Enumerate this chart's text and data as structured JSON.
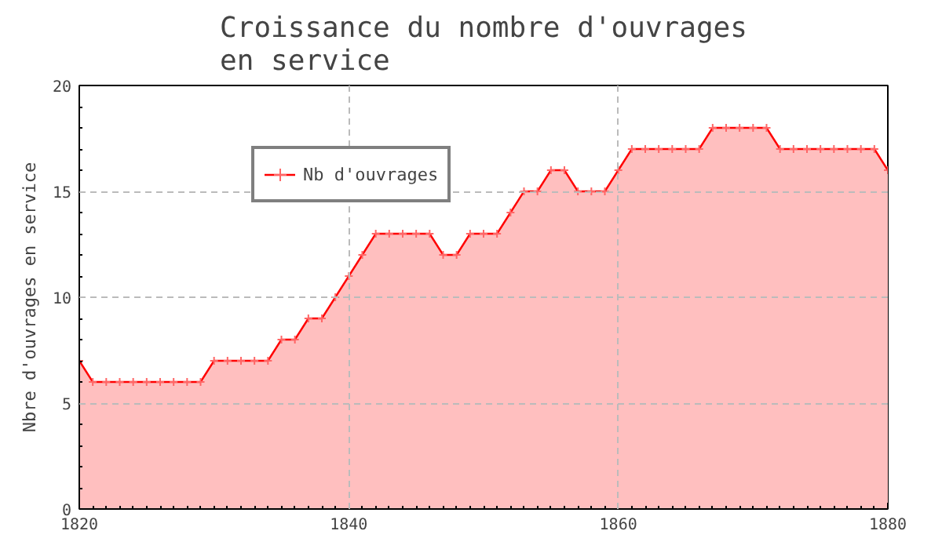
{
  "chart_data": {
    "type": "area",
    "title": "Croissance du nombre d'ouvrages\nen service",
    "ylabel": "Nbre d'ouvrages en service",
    "x": [
      1820,
      1821,
      1822,
      1823,
      1824,
      1825,
      1826,
      1827,
      1828,
      1829,
      1830,
      1831,
      1832,
      1833,
      1834,
      1835,
      1836,
      1837,
      1838,
      1839,
      1840,
      1841,
      1842,
      1843,
      1844,
      1845,
      1846,
      1847,
      1848,
      1849,
      1850,
      1851,
      1852,
      1853,
      1854,
      1855,
      1856,
      1857,
      1858,
      1859,
      1860,
      1861,
      1862,
      1863,
      1864,
      1865,
      1866,
      1867,
      1868,
      1869,
      1870,
      1871,
      1872,
      1873,
      1874,
      1875,
      1876,
      1877,
      1878,
      1879,
      1880
    ],
    "series": [
      {
        "name": "Nb d'ouvrages",
        "color": "#ff0000",
        "values": [
          7,
          6,
          6,
          6,
          6,
          6,
          6,
          6,
          6,
          6,
          7,
          7,
          7,
          7,
          7,
          8,
          8,
          9,
          9,
          10,
          11,
          12,
          13,
          13,
          13,
          13,
          13,
          12,
          12,
          13,
          13,
          13,
          14,
          15,
          15,
          16,
          16,
          15,
          15,
          15,
          16,
          17,
          17,
          17,
          17,
          17,
          17,
          18,
          18,
          18,
          18,
          18,
          17,
          17,
          17,
          17,
          17,
          17,
          17,
          17,
          16
        ]
      }
    ],
    "xlim": [
      1820,
      1880
    ],
    "xticks": [
      1820,
      1840,
      1860,
      1880
    ],
    "ylim": [
      0,
      20
    ],
    "yticks": [
      0,
      5,
      10,
      15,
      20
    ],
    "grid": true,
    "legend": "top left",
    "marker": "cross",
    "line_style": "solid"
  }
}
